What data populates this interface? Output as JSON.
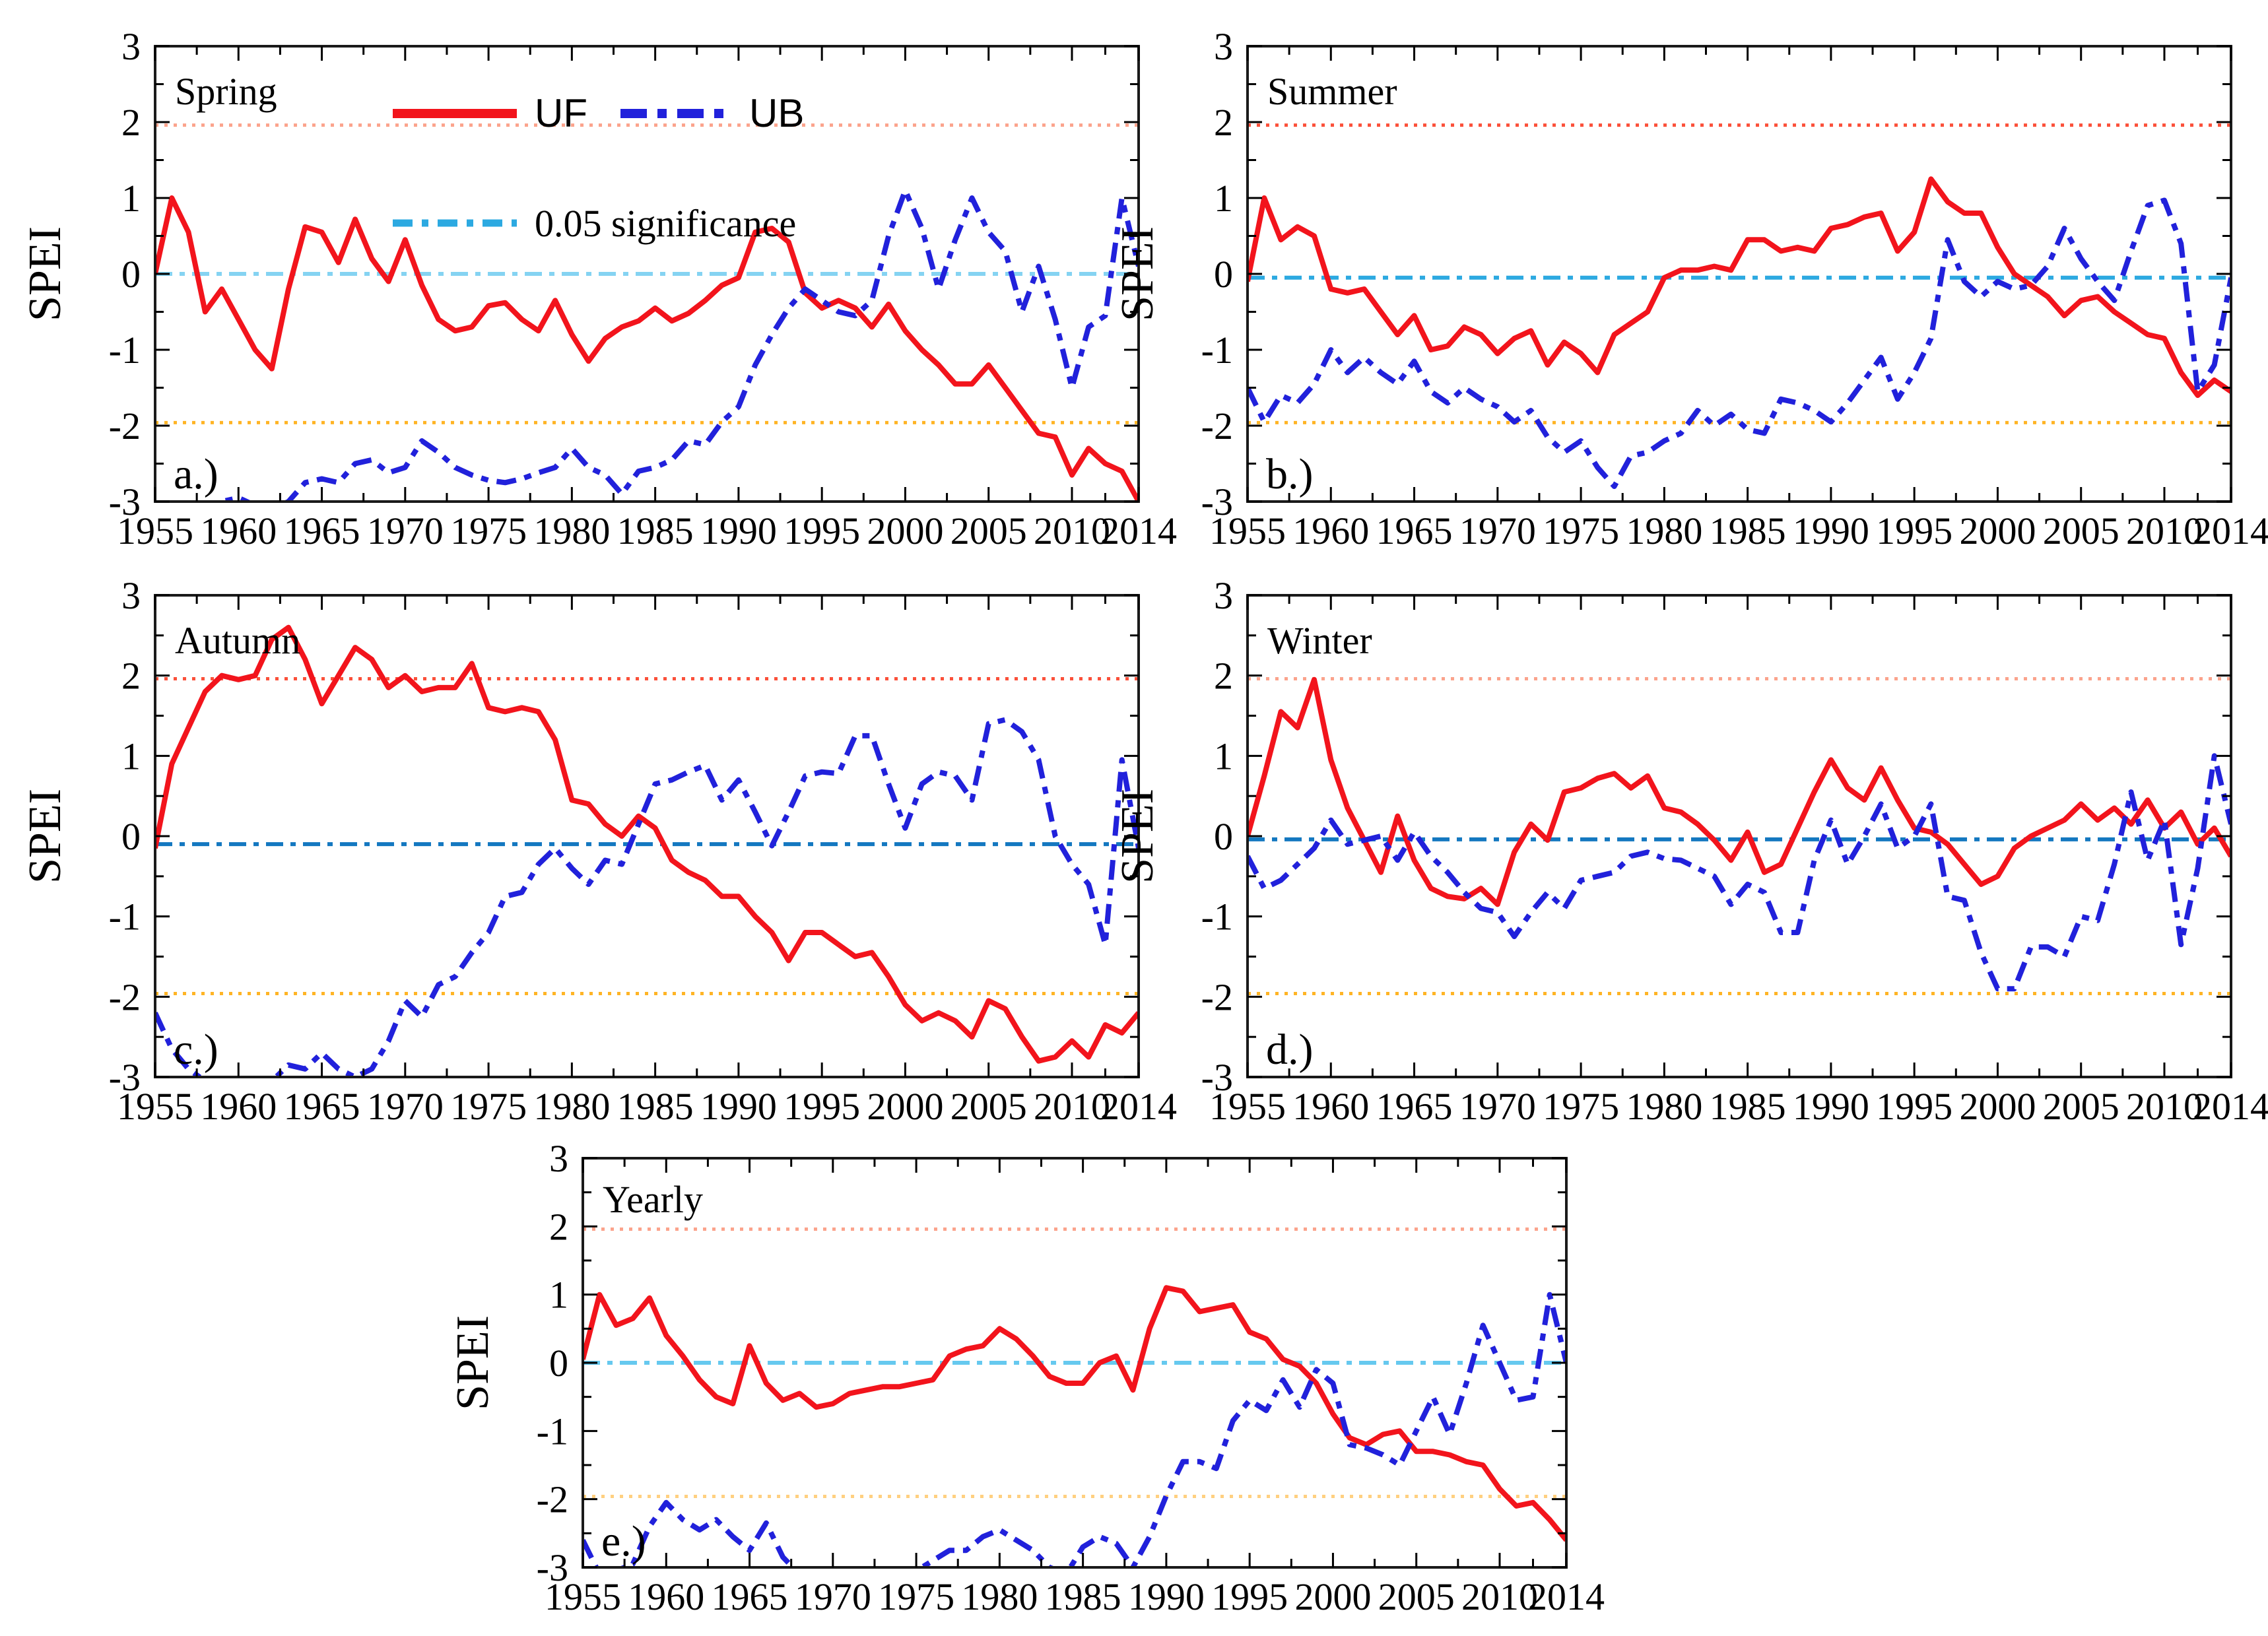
{
  "figure": {
    "background": "#ffffff",
    "ylabel": "SPEI"
  },
  "legend": {
    "uf": "UF",
    "ub": "UB",
    "sig": "0.05 significance"
  },
  "colors": {
    "uf": "#f2141c",
    "ub": "#2121db",
    "axis": "#1a1a1a",
    "sig_upper_pale": "#fba38c",
    "sig_upper_strong": "#fb503a",
    "sig_lower": "#ffb425"
  },
  "axes": {
    "xlim": [
      1955,
      2014
    ],
    "ylim": [
      -3,
      3
    ],
    "x_ticks": [
      1955,
      1960,
      1965,
      1970,
      1975,
      1980,
      1985,
      1990,
      1995,
      2000,
      2005,
      2010,
      2014
    ],
    "x_minor_ticks": [
      1957.5,
      1962.5,
      1967.5,
      1972.5,
      1977.5,
      1982.5,
      1987.5,
      1992.5,
      1997.5,
      2002.5,
      2007.5,
      2012
    ],
    "y_ticks": [
      -3,
      -2,
      -1,
      0,
      1,
      2,
      3
    ],
    "y_minor_step": 0.5
  },
  "chart_data": [
    {
      "type": "line",
      "panel_label": "a.)",
      "title": "Spring",
      "ylabel": "SPEI",
      "years": {
        "start": 1955,
        "end": 2014,
        "step": 1
      },
      "xlim": [
        1955,
        2014
      ],
      "ylim": [
        -3,
        3
      ],
      "ref_lines": [
        {
          "name": "upper-significance",
          "value": 1.96,
          "color": "#fba38c"
        },
        {
          "name": "lower-significance",
          "value": -1.96,
          "color": "#ffb425"
        }
      ],
      "sig_line": {
        "name": "0.05 significance",
        "value": 0.0,
        "color": "#85d3f2"
      },
      "series": [
        {
          "name": "UF",
          "color": "#f2141c",
          "style": "solid",
          "values": [
            0.0,
            1.0,
            0.55,
            -0.5,
            -0.2,
            -0.6,
            -1.0,
            -1.25,
            -0.2,
            0.62,
            0.55,
            0.15,
            0.72,
            0.2,
            -0.1,
            0.45,
            -0.15,
            -0.6,
            -0.75,
            -0.7,
            -0.42,
            -0.38,
            -0.6,
            -0.75,
            -0.35,
            -0.8,
            -1.15,
            -0.85,
            -0.7,
            -0.62,
            -0.45,
            -0.62,
            -0.52,
            -0.35,
            -0.15,
            -0.05,
            0.55,
            0.6,
            0.42,
            -0.25,
            -0.45,
            -0.35,
            -0.45,
            -0.7,
            -0.4,
            -0.75,
            -1.0,
            -1.2,
            -1.45,
            -1.45,
            -1.2,
            -1.5,
            -1.8,
            -2.1,
            -2.15,
            -2.65,
            -2.3,
            -2.5,
            -2.6,
            -3.0
          ]
        },
        {
          "name": "UB",
          "color": "#2121db",
          "style": "dashdot",
          "values": [
            -3.05,
            -3.1,
            -3.1,
            -3.1,
            -3.0,
            -2.95,
            -3.05,
            -3.1,
            -3.0,
            -2.75,
            -2.7,
            -2.75,
            -2.5,
            -2.45,
            -2.62,
            -2.55,
            -2.2,
            -2.35,
            -2.55,
            -2.65,
            -2.72,
            -2.75,
            -2.7,
            -2.62,
            -2.55,
            -2.3,
            -2.55,
            -2.65,
            -2.9,
            -2.6,
            -2.55,
            -2.45,
            -2.2,
            -2.25,
            -1.95,
            -1.75,
            -1.2,
            -0.8,
            -0.45,
            -0.2,
            -0.35,
            -0.5,
            -0.55,
            -0.35,
            0.5,
            1.1,
            0.6,
            -0.2,
            0.45,
            1.0,
            0.55,
            0.3,
            -0.5,
            0.1,
            -0.6,
            -1.5,
            -0.7,
            -0.55,
            1.0,
            0.1
          ]
        }
      ]
    },
    {
      "type": "line",
      "panel_label": "b.)",
      "title": "Summer",
      "ylabel": "SPEI",
      "years": {
        "start": 1955,
        "end": 2014,
        "step": 1
      },
      "xlim": [
        1955,
        2014
      ],
      "ylim": [
        -3,
        3
      ],
      "ref_lines": [
        {
          "name": "upper-significance",
          "value": 1.96,
          "color": "#fb503a"
        },
        {
          "name": "lower-significance",
          "value": -1.96,
          "color": "#ffb425"
        }
      ],
      "sig_line": {
        "name": "0.05 significance",
        "value": -0.05,
        "color": "#2ca9e1"
      },
      "series": [
        {
          "name": "UF",
          "color": "#f2141c",
          "style": "solid",
          "values": [
            -0.1,
            1.0,
            0.45,
            0.62,
            0.5,
            -0.2,
            -0.25,
            -0.2,
            -0.5,
            -0.8,
            -0.55,
            -1.0,
            -0.95,
            -0.7,
            -0.8,
            -1.05,
            -0.85,
            -0.75,
            -1.2,
            -0.9,
            -1.05,
            -1.3,
            -0.8,
            -0.65,
            -0.5,
            -0.05,
            0.05,
            0.05,
            0.1,
            0.05,
            0.45,
            0.45,
            0.3,
            0.35,
            0.3,
            0.6,
            0.65,
            0.75,
            0.8,
            0.3,
            0.55,
            1.25,
            0.95,
            0.8,
            0.8,
            0.35,
            0.0,
            -0.15,
            -0.3,
            -0.55,
            -0.35,
            -0.3,
            -0.5,
            -0.65,
            -0.8,
            -0.85,
            -1.3,
            -1.6,
            -1.4,
            -1.55
          ]
        },
        {
          "name": "UB",
          "color": "#2121db",
          "style": "dashdot",
          "values": [
            -1.5,
            -1.95,
            -1.6,
            -1.7,
            -1.45,
            -1.0,
            -1.3,
            -1.1,
            -1.3,
            -1.45,
            -1.15,
            -1.55,
            -1.7,
            -1.5,
            -1.65,
            -1.75,
            -1.95,
            -1.8,
            -2.15,
            -2.35,
            -2.2,
            -2.55,
            -2.8,
            -2.4,
            -2.35,
            -2.2,
            -2.1,
            -1.8,
            -2.0,
            -1.85,
            -2.05,
            -2.1,
            -1.65,
            -1.7,
            -1.8,
            -1.95,
            -1.7,
            -1.4,
            -1.1,
            -1.65,
            -1.3,
            -0.85,
            0.45,
            -0.1,
            -0.3,
            -0.1,
            -0.2,
            -0.15,
            0.1,
            0.6,
            0.2,
            -0.1,
            -0.35,
            0.3,
            0.9,
            0.97,
            0.4,
            -1.55,
            -1.2,
            -0.05
          ]
        }
      ]
    },
    {
      "type": "line",
      "panel_label": "c.)",
      "title": "Autumn",
      "ylabel": "SPEI",
      "years": {
        "start": 1955,
        "end": 2014,
        "step": 1
      },
      "xlim": [
        1955,
        2014
      ],
      "ylim": [
        -3,
        3
      ],
      "ref_lines": [
        {
          "name": "upper-significance",
          "value": 1.96,
          "color": "#fb503a"
        },
        {
          "name": "lower-significance",
          "value": -1.96,
          "color": "#ffb425"
        }
      ],
      "sig_line": {
        "name": "0.05 significance",
        "value": -0.1,
        "color": "#1478c0"
      },
      "series": [
        {
          "name": "UF",
          "color": "#f2141c",
          "style": "solid",
          "values": [
            -0.15,
            0.9,
            1.35,
            1.8,
            2.0,
            1.95,
            2.0,
            2.45,
            2.6,
            2.2,
            1.65,
            2.0,
            2.35,
            2.2,
            1.85,
            2.0,
            1.8,
            1.85,
            1.85,
            2.15,
            1.6,
            1.55,
            1.6,
            1.55,
            1.2,
            0.45,
            0.4,
            0.15,
            0.0,
            0.25,
            0.1,
            -0.3,
            -0.45,
            -0.55,
            -0.75,
            -0.75,
            -1.0,
            -1.2,
            -1.55,
            -1.2,
            -1.2,
            -1.35,
            -1.5,
            -1.45,
            -1.75,
            -2.1,
            -2.3,
            -2.2,
            -2.3,
            -2.5,
            -2.05,
            -2.15,
            -2.5,
            -2.8,
            -2.75,
            -2.55,
            -2.75,
            -2.35,
            -2.45,
            -2.2
          ]
        },
        {
          "name": "UB",
          "color": "#2121db",
          "style": "dashdot",
          "values": [
            -2.2,
            -2.65,
            -2.9,
            -3.05,
            -3.1,
            -3.1,
            -3.1,
            -3.05,
            -2.85,
            -2.9,
            -2.7,
            -2.9,
            -3.0,
            -2.9,
            -2.55,
            -2.05,
            -2.25,
            -1.85,
            -1.75,
            -1.45,
            -1.2,
            -0.75,
            -0.7,
            -0.35,
            -0.15,
            -0.4,
            -0.6,
            -0.3,
            -0.35,
            0.15,
            0.65,
            0.7,
            0.8,
            0.88,
            0.45,
            0.7,
            0.3,
            -0.12,
            0.3,
            0.75,
            0.8,
            0.78,
            1.25,
            1.25,
            0.65,
            0.1,
            0.65,
            0.8,
            0.75,
            0.45,
            1.4,
            1.45,
            1.3,
            0.95,
            0.0,
            -0.35,
            -0.6,
            -1.35,
            0.95,
            -0.15
          ]
        }
      ]
    },
    {
      "type": "line",
      "panel_label": "d.)",
      "title": "Winter",
      "ylabel": "SPEI",
      "years": {
        "start": 1955,
        "end": 2014,
        "step": 1
      },
      "xlim": [
        1955,
        2014
      ],
      "ylim": [
        -3,
        3
      ],
      "ref_lines": [
        {
          "name": "upper-significance",
          "value": 1.96,
          "color": "#fba38c"
        },
        {
          "name": "lower-significance",
          "value": -1.96,
          "color": "#ffb425"
        }
      ],
      "sig_line": {
        "name": "0.05 significance",
        "value": -0.04,
        "color": "#1478c0"
      },
      "series": [
        {
          "name": "UF",
          "color": "#f2141c",
          "style": "solid",
          "values": [
            0.0,
            0.75,
            1.55,
            1.35,
            1.95,
            0.95,
            0.35,
            -0.05,
            -0.45,
            0.25,
            -0.3,
            -0.65,
            -0.75,
            -0.78,
            -0.65,
            -0.85,
            -0.2,
            0.15,
            -0.05,
            0.55,
            0.6,
            0.72,
            0.78,
            0.6,
            0.75,
            0.35,
            0.3,
            0.15,
            -0.05,
            -0.3,
            0.05,
            -0.45,
            -0.35,
            0.1,
            0.55,
            0.95,
            0.6,
            0.45,
            0.85,
            0.45,
            0.1,
            0.05,
            -0.1,
            -0.35,
            -0.6,
            -0.5,
            -0.15,
            0.0,
            0.1,
            0.2,
            0.4,
            0.2,
            0.35,
            0.15,
            0.45,
            0.1,
            0.3,
            -0.1,
            0.1,
            -0.25
          ]
        },
        {
          "name": "UB",
          "color": "#2121db",
          "style": "dashdot",
          "values": [
            -0.25,
            -0.65,
            -0.55,
            -0.35,
            -0.15,
            0.2,
            -0.1,
            -0.05,
            0.0,
            -0.3,
            0.05,
            -0.25,
            -0.45,
            -0.7,
            -0.9,
            -0.95,
            -1.25,
            -0.95,
            -0.7,
            -0.9,
            -0.55,
            -0.5,
            -0.45,
            -0.25,
            -0.2,
            -0.28,
            -0.3,
            -0.4,
            -0.5,
            -0.85,
            -0.6,
            -0.7,
            -1.2,
            -1.2,
            -0.3,
            0.2,
            -0.35,
            0.0,
            0.4,
            -0.15,
            0.0,
            0.4,
            -0.75,
            -0.8,
            -1.45,
            -1.9,
            -1.9,
            -1.38,
            -1.38,
            -1.5,
            -1.0,
            -1.05,
            -0.35,
            0.55,
            -0.3,
            0.2,
            -1.35,
            -0.4,
            1.0,
            0.15
          ]
        }
      ]
    },
    {
      "type": "line",
      "panel_label": "e.)",
      "title": "Yearly",
      "ylabel": "SPEI",
      "years": {
        "start": 1955,
        "end": 2014,
        "step": 1
      },
      "xlim": [
        1955,
        2014
      ],
      "ylim": [
        -3,
        3
      ],
      "ref_lines": [
        {
          "name": "upper-significance",
          "value": 1.96,
          "color": "#fba38c"
        },
        {
          "name": "lower-significance",
          "value": -1.96,
          "color": "#ffd080"
        }
      ],
      "sig_line": {
        "name": "0.05 significance",
        "value": 0.0,
        "color": "#66c9ef"
      },
      "series": [
        {
          "name": "UF",
          "color": "#f2141c",
          "style": "solid",
          "values": [
            0.05,
            1.0,
            0.55,
            0.65,
            0.95,
            0.4,
            0.1,
            -0.25,
            -0.5,
            -0.6,
            0.25,
            -0.3,
            -0.55,
            -0.45,
            -0.65,
            -0.6,
            -0.45,
            -0.4,
            -0.35,
            -0.35,
            -0.3,
            -0.25,
            0.1,
            0.2,
            0.25,
            0.5,
            0.35,
            0.1,
            -0.2,
            -0.3,
            -0.3,
            0.0,
            0.1,
            -0.4,
            0.5,
            1.1,
            1.05,
            0.75,
            0.8,
            0.85,
            0.45,
            0.35,
            0.05,
            -0.05,
            -0.3,
            -0.75,
            -1.1,
            -1.2,
            -1.05,
            -1.0,
            -1.3,
            -1.3,
            -1.35,
            -1.45,
            -1.5,
            -1.85,
            -2.1,
            -2.05,
            -2.3,
            -2.6
          ]
        },
        {
          "name": "UB",
          "color": "#2121db",
          "style": "dashdot",
          "values": [
            -2.6,
            -3.1,
            -3.05,
            -2.95,
            -2.4,
            -2.05,
            -2.3,
            -2.45,
            -2.3,
            -2.55,
            -2.75,
            -2.35,
            -2.85,
            -3.1,
            -3.1,
            -3.1,
            -3.1,
            -3.1,
            -3.1,
            -3.1,
            -3.05,
            -2.9,
            -2.75,
            -2.75,
            -2.55,
            -2.45,
            -2.6,
            -2.75,
            -3.0,
            -3.1,
            -2.7,
            -2.55,
            -2.65,
            -3.0,
            -2.55,
            -1.95,
            -1.45,
            -1.45,
            -1.55,
            -0.85,
            -0.55,
            -0.7,
            -0.25,
            -0.65,
            -0.1,
            -0.3,
            -1.2,
            -1.25,
            -1.35,
            -1.5,
            -1.0,
            -0.5,
            -1.05,
            -0.3,
            0.55,
            0.0,
            -0.55,
            -0.5,
            1.0,
            0.0
          ]
        }
      ]
    }
  ]
}
